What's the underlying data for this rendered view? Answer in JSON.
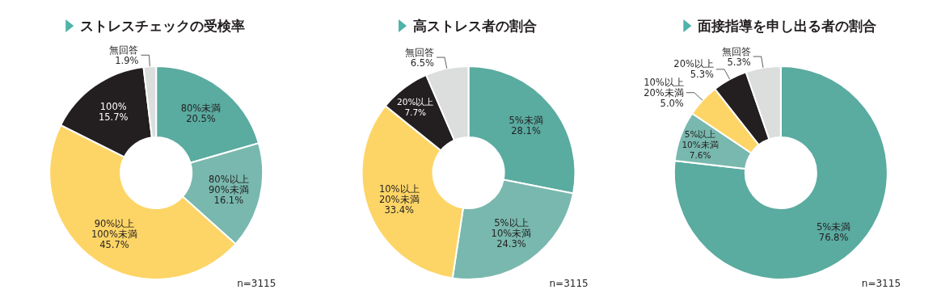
{
  "chart_data": [
    {
      "type": "donut",
      "title": "ストレスチェックの受検率",
      "categories": [
        "80%未満",
        "80%以上\n90%未満",
        "90%以上\n100%未満",
        "100%",
        "無回答"
      ],
      "values": [
        20.5,
        16.1,
        45.7,
        15.7,
        1.9
      ],
      "value_labels": [
        "20.5%",
        "16.1%",
        "45.7%",
        "15.7%",
        "1.9%"
      ],
      "colors": [
        "#5aaba0",
        "#79b8ae",
        "#fdd566",
        "#231f20",
        "#dcdddd"
      ],
      "annotations": [
        "n=3115"
      ]
    },
    {
      "type": "donut",
      "title": "高ストレス者の割合",
      "categories": [
        "5%未満",
        "5%以上\n10%未満",
        "10%以上\n20%未満",
        "20%以上",
        "無回答"
      ],
      "values": [
        28.1,
        24.3,
        33.4,
        7.7,
        6.5
      ],
      "value_labels": [
        "28.1%",
        "24.3%",
        "33.4%",
        "7.7%",
        "6.5%"
      ],
      "colors": [
        "#5aaba0",
        "#79b8ae",
        "#fdd566",
        "#231f20",
        "#dcdddd"
      ],
      "annotations": [
        "n=3115"
      ]
    },
    {
      "type": "donut",
      "title": "面接指導を申し出る者の割合",
      "categories": [
        "5%未満",
        "5%以上\n10%未満",
        "10%以上\n20%未満",
        "20%以上",
        "無回答"
      ],
      "values": [
        76.8,
        7.6,
        5.0,
        5.3,
        5.3
      ],
      "value_labels": [
        "76.8%",
        "7.6%",
        "5.0%",
        "5.3%",
        "5.3%"
      ],
      "colors": [
        "#5aaba0",
        "#79b8ae",
        "#fdd566",
        "#231f20",
        "#dcdddd"
      ],
      "annotations": [
        "n=3115"
      ]
    }
  ]
}
